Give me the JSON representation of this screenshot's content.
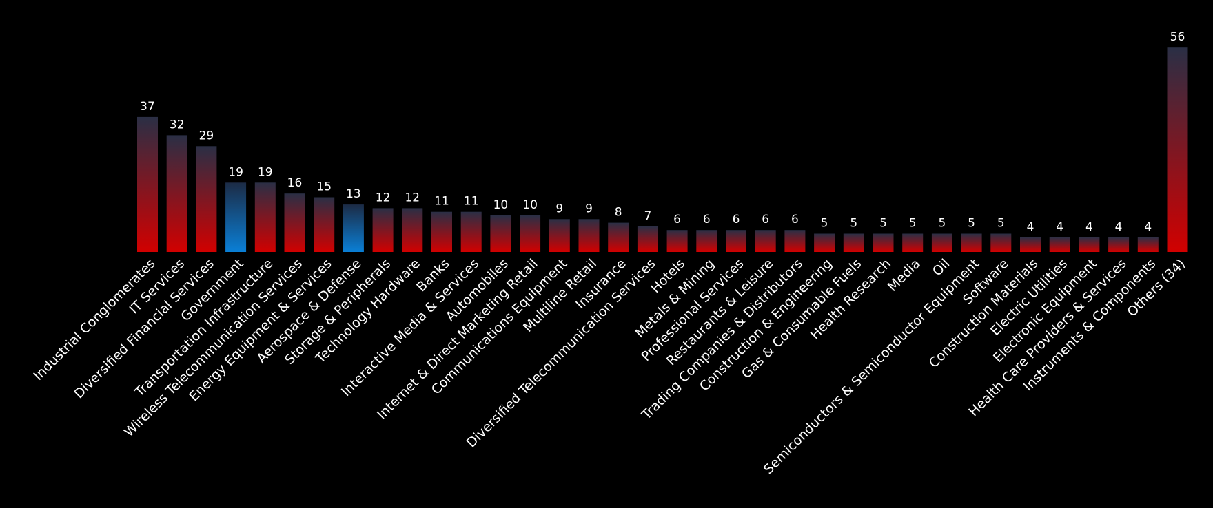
{
  "chart_data": {
    "type": "bar",
    "title": "",
    "xlabel": "",
    "ylabel": "",
    "ylim": [
      0,
      56
    ],
    "grid": false,
    "legend": "none",
    "categories": [
      "Industrial Conglomerates",
      "IT Services",
      "Diversified Financial Services",
      "Government",
      "Transportation Infrastructure",
      "Wireless Telecommunication Services",
      "Energy Equipment & Services",
      "Aerospace & Defense",
      "Storage & Peripherals",
      "Technology Hardware",
      "Banks",
      "Interactive Media & Services",
      "Automobiles",
      "Internet & Direct Marketing Retail",
      "Communications Equipment",
      "Multiline Retail",
      "Insurance",
      "Diversified Telecommunication Services",
      "Hotels",
      "Metals & Mining",
      "Professional Services",
      "Restaurants & Leisure",
      "Trading Companies & Distributors",
      "Construction & Engineering",
      "Gas & Consumable Fuels",
      "Health Research",
      "Media",
      "Oil",
      "Semiconductors & Semiconductor Equipment",
      "Software",
      "Construction Materials",
      "Electric Utilities",
      "Electronic Equipment",
      "Health Care Providers & Services",
      "Instruments & Components",
      "Others (34)"
    ],
    "values": [
      37,
      32,
      29,
      19,
      19,
      16,
      15,
      13,
      12,
      12,
      11,
      11,
      10,
      10,
      9,
      9,
      8,
      7,
      6,
      6,
      6,
      6,
      6,
      5,
      5,
      5,
      5,
      5,
      5,
      5,
      4,
      4,
      4,
      4,
      4,
      56
    ],
    "highlighted": [
      "Government",
      "Aerospace & Defense"
    ],
    "colors": {
      "background": "#000000",
      "bar_top": "#2a2f45",
      "bar_bottom": "#d10000",
      "highlight_top": "#1c2b45",
      "highlight_bottom": "#0a7fd6",
      "text": "#ffffff"
    }
  }
}
